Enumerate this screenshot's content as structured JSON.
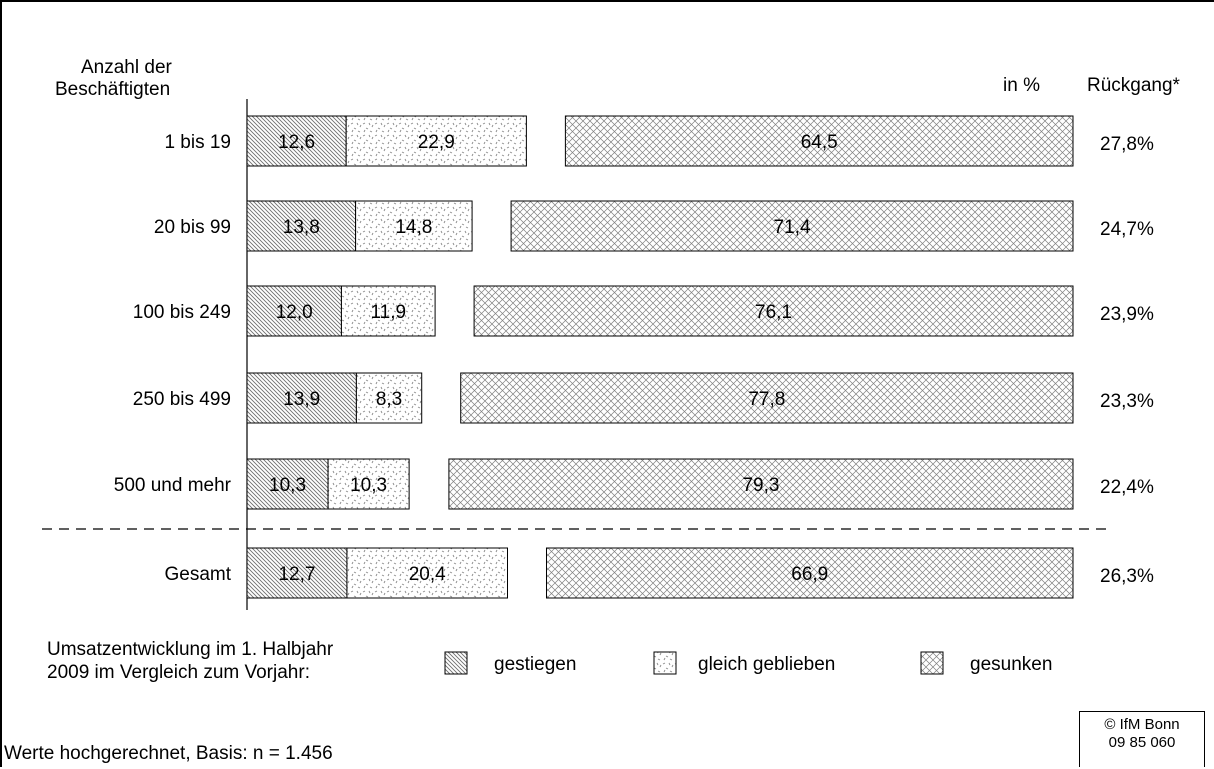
{
  "chart_data": {
    "type": "bar",
    "orientation": "horizontal",
    "stacked": true,
    "y_title": "Anzahl der Beschäftigten",
    "unit_label": "in %",
    "right_column_title": "Rückgang*",
    "categories": [
      "1 bis 19",
      "20 bis 99",
      "100 bis 249",
      "250 bis 499",
      "500 und mehr",
      "Gesamt"
    ],
    "series": [
      {
        "name": "gestiegen",
        "values": [
          12.6,
          13.8,
          12.0,
          13.9,
          10.3,
          12.7
        ],
        "labels": [
          "12,6",
          "13,8",
          "12,0",
          "13,9",
          "10,3",
          "12,7"
        ],
        "pattern": "diagonal-hatch"
      },
      {
        "name": "gleich geblieben",
        "values": [
          22.9,
          14.8,
          11.9,
          8.3,
          10.3,
          20.4
        ],
        "labels": [
          "22,9",
          "14,8",
          "11,9",
          "8,3",
          "10,3",
          "20,4"
        ],
        "pattern": "sparse-dots"
      },
      {
        "name": "gesunken",
        "values": [
          64.5,
          71.4,
          76.1,
          77.8,
          79.3,
          66.9
        ],
        "labels": [
          "64,5",
          "71,4",
          "76,1",
          "77,8",
          "79,3",
          "66,9"
        ],
        "pattern": "crosshatch"
      }
    ],
    "ruckgang": [
      "27,8%",
      "24,7%",
      "23,9%",
      "23,3%",
      "22,4%",
      "26,3%"
    ],
    "separator_before": "Gesamt",
    "grid": false
  },
  "legend": {
    "caption_line1": "Umsatzentwicklung im 1. Halbjahr",
    "caption_line2": "2009 im Vergleich zum Vorjahr:",
    "items": [
      "gestiegen",
      "gleich geblieben",
      "gesunken"
    ]
  },
  "footer": {
    "note": "Werte hochgerechnet, Basis: n = 1.456",
    "copyright_line1": "© IfM Bonn",
    "copyright_line2": "09 85 060"
  }
}
